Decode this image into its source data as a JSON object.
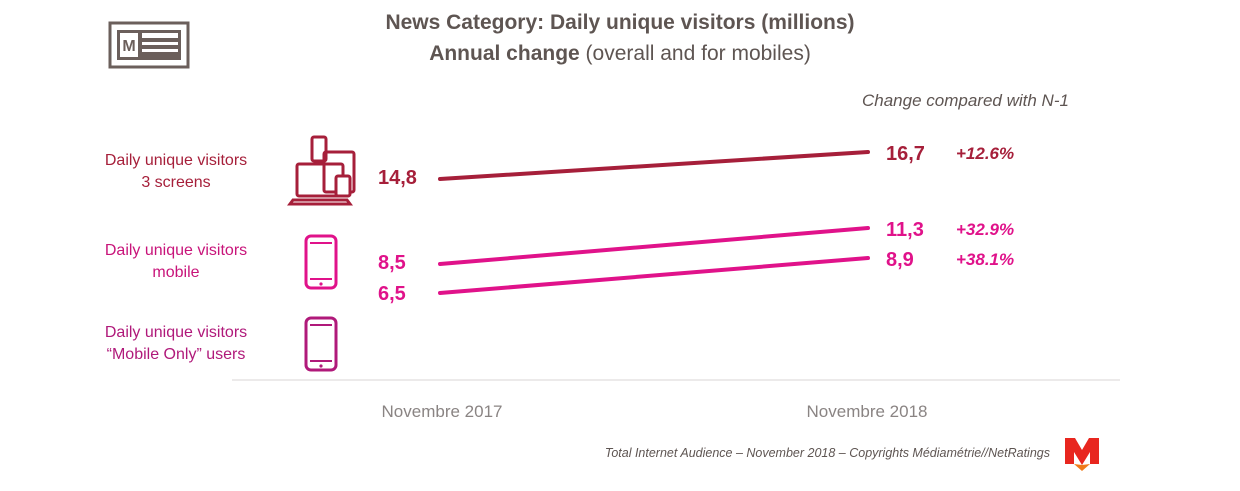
{
  "header": {
    "title_line1": "News Category: Daily unique visitors (millions)",
    "title_line2_bold": "Annual change",
    "title_line2_rest": " (overall and for mobiles)",
    "change_caption": "Change compared with N-1"
  },
  "rows": [
    {
      "label_line1": "Daily unique visitors",
      "label_line2": "3 screens",
      "icon": "multi-screen-devices-icon"
    },
    {
      "label_line1": "Daily unique visitors",
      "label_line2": "mobile",
      "icon": "smartphone-icon"
    },
    {
      "label_line1": "Daily unique visitors",
      "label_line2": "“Mobile Only” users",
      "icon": "smartphone-icon"
    }
  ],
  "footer": {
    "source": "Total Internet Audience – November 2018 – Copyrights Médiamétrie//NetRatings",
    "logo_letter": "M"
  },
  "chart_data": {
    "type": "line",
    "title": "News Category: Daily unique visitors (millions)",
    "subtitle": "Annual change (overall and for mobiles)",
    "x": [
      "Novembre 2017",
      "Novembre 2018"
    ],
    "series": [
      {
        "name": "Daily unique visitors 3 screens",
        "values": [
          14.8,
          16.7
        ],
        "value_labels": [
          "14,8",
          "16,7"
        ],
        "change": "+12.6%",
        "color": "#a61f3a"
      },
      {
        "name": "Daily unique visitors mobile",
        "values": [
          8.5,
          11.3
        ],
        "value_labels": [
          "8,5",
          "11,3"
        ],
        "change": "+32.9%",
        "color": "#e0128a"
      },
      {
        "name": "Daily unique visitors “Mobile Only” users",
        "values": [
          6.5,
          8.9
        ],
        "value_labels": [
          "6,5",
          "8,9"
        ],
        "change": "+38.1%",
        "color": "#e0128a"
      }
    ],
    "label_colors": {
      "dark": "#a61f3a",
      "pink": "#c8147a",
      "magenta": "#b0197a"
    },
    "grid": false,
    "legend": "left"
  }
}
